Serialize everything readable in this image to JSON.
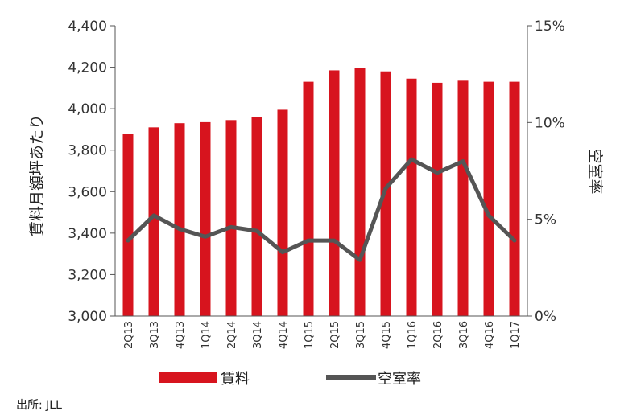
{
  "chart_data": {
    "type": "bar",
    "categories": [
      "2Q13",
      "3Q13",
      "4Q13",
      "1Q14",
      "2Q14",
      "3Q14",
      "4Q14",
      "1Q15",
      "2Q15",
      "3Q15",
      "4Q15",
      "1Q16",
      "2Q16",
      "3Q16",
      "4Q16",
      "1Q17"
    ],
    "series": [
      {
        "name": "賃料",
        "type": "bar",
        "axis": "left",
        "color": "#d7141e",
        "values": [
          3880,
          3910,
          3930,
          3935,
          3945,
          3960,
          3995,
          4130,
          4185,
          4195,
          4180,
          4145,
          4125,
          4135,
          4130,
          4130
        ]
      },
      {
        "name": "空室率",
        "type": "line",
        "axis": "right",
        "color": "#555555",
        "values": [
          3.9,
          5.2,
          4.5,
          4.1,
          4.6,
          4.4,
          3.3,
          3.9,
          3.9,
          2.9,
          6.6,
          8.1,
          7.4,
          8.0,
          5.2,
          3.9
        ]
      }
    ],
    "left_axis": {
      "label": "賃料月額坪あたり",
      "ylim": [
        3000,
        4400
      ],
      "ticks": [
        "3,000",
        "3,200",
        "3,400",
        "3,600",
        "3,800",
        "4,000",
        "4,200",
        "4,400"
      ]
    },
    "right_axis": {
      "label": "空室率",
      "ylim": [
        0,
        15
      ],
      "ticks": [
        "0%",
        "5%",
        "10%",
        "15%"
      ]
    },
    "legend": {
      "placement": "bottom",
      "items": [
        "賃料",
        "空室率"
      ]
    },
    "grid": false
  },
  "source": "出所: JLL"
}
